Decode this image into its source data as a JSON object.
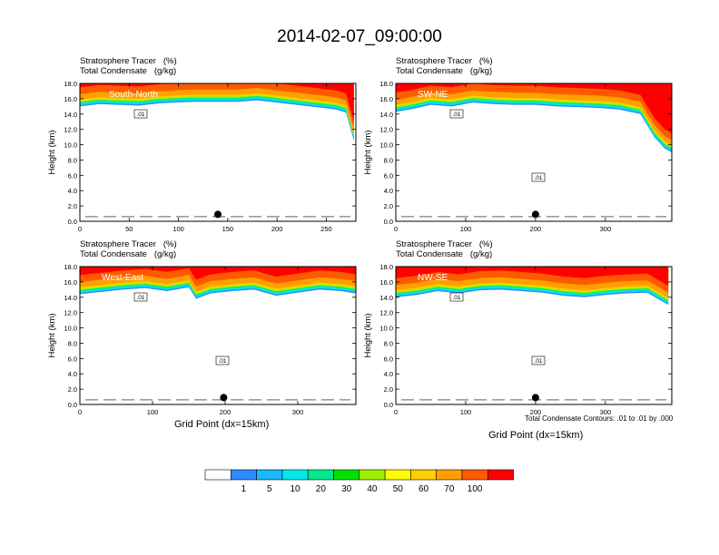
{
  "title": "2014-02-07_09:00:00",
  "chart_data": [
    {
      "type": "heatmap",
      "direction_label": "South-North",
      "field_labels": [
        "Stratosphere Tracer   (%)",
        "Total Condensate   (g/kg)"
      ],
      "ylabel": "Height (km)",
      "xlabel": "",
      "ylim": [
        0,
        18
      ],
      "xlim": [
        0,
        280
      ],
      "xticks": [
        "0",
        "50",
        "100",
        "150",
        "200",
        "250"
      ],
      "yticks": [
        "0.0",
        "2.0",
        "4.0",
        "6.0",
        "8.0",
        "10.0",
        "12.0",
        "14.0",
        "16.0",
        "18.0"
      ],
      "marker_x": 140,
      "contour_labels": [
        ".01"
      ],
      "tropopause_km": [
        [
          0,
          15.0
        ],
        [
          20,
          15.3
        ],
        [
          40,
          15.2
        ],
        [
          60,
          15.1
        ],
        [
          80,
          15.4
        ],
        [
          95,
          15.5
        ],
        [
          115,
          15.6
        ],
        [
          140,
          15.6
        ],
        [
          160,
          15.6
        ],
        [
          180,
          15.8
        ],
        [
          200,
          15.5
        ],
        [
          220,
          15.2
        ],
        [
          240,
          14.9
        ],
        [
          260,
          14.6
        ],
        [
          270,
          14.2
        ],
        [
          278,
          10.5
        ]
      ]
    },
    {
      "type": "heatmap",
      "direction_label": "SW-NE",
      "field_labels": [
        "Stratosphere Tracer   (%)",
        "Total Condensate   (g/kg)"
      ],
      "ylabel": "Height (km)",
      "xlabel": "",
      "ylim": [
        0,
        18
      ],
      "xlim": [
        0,
        395
      ],
      "xticks": [
        "0",
        "100",
        "200",
        "300"
      ],
      "yticks": [
        "0.0",
        "2.0",
        "4.0",
        "6.0",
        "8.0",
        "10.0",
        "12.0",
        "14.0",
        "16.0",
        "18.0"
      ],
      "marker_x": 200,
      "contour_labels": [
        ".01",
        ".01"
      ],
      "tropopause_km": [
        [
          0,
          14.3
        ],
        [
          20,
          14.6
        ],
        [
          50,
          15.2
        ],
        [
          80,
          15.0
        ],
        [
          110,
          15.5
        ],
        [
          140,
          15.3
        ],
        [
          170,
          15.2
        ],
        [
          200,
          15.2
        ],
        [
          230,
          15.0
        ],
        [
          260,
          14.9
        ],
        [
          290,
          14.8
        ],
        [
          320,
          14.6
        ],
        [
          350,
          14.0
        ],
        [
          370,
          11.0
        ],
        [
          385,
          9.5
        ],
        [
          395,
          9.0
        ]
      ]
    },
    {
      "type": "heatmap",
      "direction_label": "West-East",
      "field_labels": [
        "Stratosphere Tracer   (%)",
        "Total Condensate   (g/kg)"
      ],
      "ylabel": "Height (km)",
      "xlabel": "Grid Point (dx=15km)",
      "ylim": [
        0,
        18
      ],
      "xlim": [
        0,
        380
      ],
      "xticks": [
        "0",
        "100",
        "200",
        "300"
      ],
      "yticks": [
        "0.0",
        "2.0",
        "4.0",
        "6.0",
        "8.0",
        "10.0",
        "12.0",
        "14.0",
        "16.0",
        "18.0"
      ],
      "marker_x": 198,
      "contour_labels": [
        ".01",
        ".01"
      ],
      "tropopause_km": [
        [
          0,
          14.4
        ],
        [
          30,
          14.7
        ],
        [
          60,
          15.0
        ],
        [
          90,
          15.2
        ],
        [
          120,
          14.8
        ],
        [
          150,
          15.3
        ],
        [
          160,
          13.8
        ],
        [
          180,
          14.5
        ],
        [
          210,
          14.8
        ],
        [
          240,
          15.0
        ],
        [
          270,
          14.2
        ],
        [
          300,
          14.6
        ],
        [
          330,
          15.0
        ],
        [
          360,
          14.8
        ],
        [
          380,
          14.5
        ]
      ]
    },
    {
      "type": "heatmap",
      "direction_label": "NW-SE",
      "field_labels": [
        "Stratosphere Tracer   (%)",
        "Total Condensate   (g/kg)"
      ],
      "ylabel": "Height (km)",
      "xlabel": "Grid Point (dx=15km)",
      "ylim": [
        0,
        18
      ],
      "xlim": [
        0,
        395
      ],
      "xticks": [
        "0",
        "100",
        "200",
        "300"
      ],
      "yticks": [
        "0.0",
        "2.0",
        "4.0",
        "6.0",
        "8.0",
        "10.0",
        "12.0",
        "14.0",
        "16.0",
        "18.0"
      ],
      "marker_x": 200,
      "contour_labels": [
        ".01",
        ".01"
      ],
      "tropopause_km": [
        [
          0,
          14.0
        ],
        [
          30,
          14.3
        ],
        [
          60,
          14.8
        ],
        [
          90,
          14.5
        ],
        [
          120,
          14.9
        ],
        [
          150,
          15.0
        ],
        [
          180,
          14.8
        ],
        [
          210,
          14.6
        ],
        [
          240,
          14.2
        ],
        [
          270,
          14.0
        ],
        [
          300,
          14.3
        ],
        [
          330,
          14.5
        ],
        [
          360,
          14.6
        ],
        [
          390,
          13.0
        ]
      ]
    }
  ],
  "contour_note": "Total Condensate Contours: .01 to .01 by .000",
  "colorbar": {
    "labels": [
      "1",
      "5",
      "10",
      "20",
      "30",
      "40",
      "50",
      "60",
      "70",
      "100"
    ],
    "colors": [
      "#ffffff",
      "#2b8cff",
      "#1ab8ff",
      "#00e8e8",
      "#00e890",
      "#00e000",
      "#a0f000",
      "#ffff00",
      "#ffd000",
      "#ffa000",
      "#ff5a00",
      "#ff0000"
    ]
  }
}
